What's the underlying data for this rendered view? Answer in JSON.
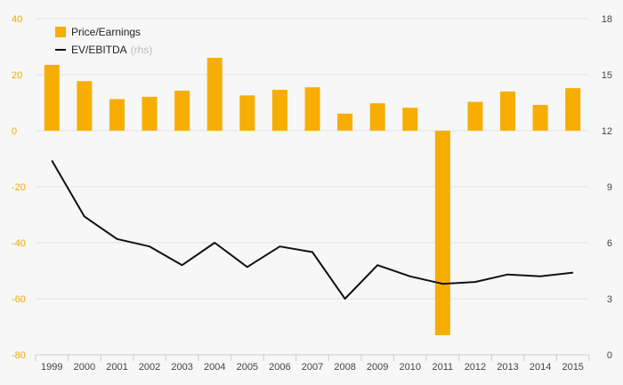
{
  "chart_data": {
    "type": "bar+line",
    "categories": [
      "1999",
      "2000",
      "2001",
      "2002",
      "2003",
      "2004",
      "2005",
      "2006",
      "2007",
      "2008",
      "2009",
      "2010",
      "2011",
      "2012",
      "2013",
      "2014",
      "2015"
    ],
    "series": [
      {
        "name": "Price/Earnings",
        "type": "bar",
        "axis": "left",
        "color": "#f7ae00",
        "values": [
          23.5,
          17.7,
          11.3,
          12.1,
          14.3,
          26.0,
          12.6,
          14.6,
          15.5,
          6.1,
          9.8,
          8.2,
          -73.0,
          10.3,
          14.0,
          9.2,
          15.2
        ]
      },
      {
        "name": "EV/EBITDA",
        "name_suffix": "(rhs)",
        "type": "line",
        "axis": "right",
        "color": "#111111",
        "values": [
          10.4,
          7.4,
          6.2,
          5.8,
          4.8,
          6.0,
          4.7,
          5.8,
          5.5,
          3.0,
          4.8,
          4.2,
          3.8,
          3.9,
          4.3,
          4.2,
          4.4
        ]
      }
    ],
    "y_left": {
      "min": -80,
      "max": 40,
      "ticks": [
        40,
        20,
        0,
        -20,
        -40,
        -60,
        -80
      ],
      "color": "#f0a800"
    },
    "y_right": {
      "min": 0,
      "max": 18,
      "ticks": [
        18,
        15,
        12,
        9,
        6,
        3,
        0
      ]
    },
    "grid": true,
    "legend": {
      "position": "top-left"
    }
  }
}
